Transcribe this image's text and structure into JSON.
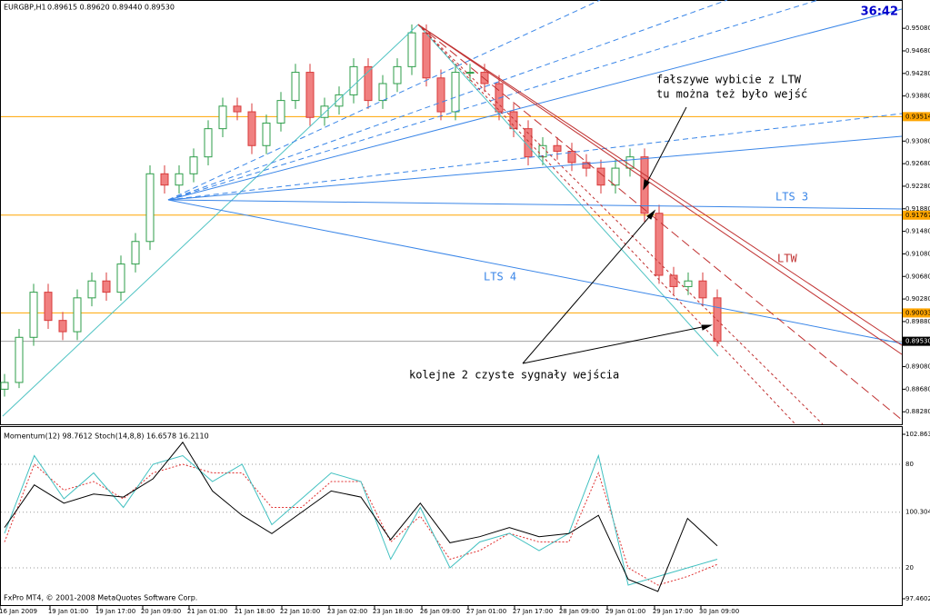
{
  "header": {
    "symbol": "EURGBP,H1",
    "quote": "0.89615 0.89620 0.89440 0.89530"
  },
  "clock": "36:42",
  "price_axis": {
    "ylim": [
      0.8809,
      0.9555
    ],
    "ticks": [
      {
        "value": 0.9508,
        "label": "0.95080"
      },
      {
        "value": 0.9468,
        "label": "0.94680"
      },
      {
        "value": 0.9428,
        "label": "0.94280"
      },
      {
        "value": 0.9388,
        "label": "0.93880"
      },
      {
        "value": 0.9308,
        "label": "0.93080"
      },
      {
        "value": 0.9268,
        "label": "0.92680"
      },
      {
        "value": 0.9228,
        "label": "0.92280"
      },
      {
        "value": 0.9188,
        "label": "0.91880"
      },
      {
        "value": 0.9148,
        "label": "0.91480"
      },
      {
        "value": 0.9108,
        "label": "0.91080"
      },
      {
        "value": 0.9068,
        "label": "0.90680"
      },
      {
        "value": 0.9028,
        "label": "0.90280"
      },
      {
        "value": 0.8988,
        "label": "0.89880"
      },
      {
        "value": 0.8948,
        "label": "0.89480"
      },
      {
        "value": 0.8908,
        "label": "0.89080"
      },
      {
        "value": 0.8868,
        "label": "0.88680"
      },
      {
        "value": 0.8828,
        "label": "0.88280"
      }
    ]
  },
  "price_levels": [
    {
      "value": 0.93514,
      "label": "0.93514",
      "color": "#ffa500"
    },
    {
      "value": 0.91767,
      "label": "0.91767",
      "color": "#ffa500"
    },
    {
      "value": 0.90033,
      "label": "0.90033",
      "color": "#ffa500"
    },
    {
      "value": 0.8953,
      "label": "0.89530",
      "color": "#a0a0a0"
    }
  ],
  "candles": [
    [
      0.8868,
      0.8895,
      0.8855,
      0.888
    ],
    [
      0.888,
      0.8975,
      0.887,
      0.896
    ],
    [
      0.896,
      0.9055,
      0.8945,
      0.904
    ],
    [
      0.904,
      0.9055,
      0.8975,
      0.899
    ],
    [
      0.899,
      0.9005,
      0.8955,
      0.897
    ],
    [
      0.897,
      0.9045,
      0.8955,
      0.903
    ],
    [
      0.903,
      0.9075,
      0.9015,
      0.906
    ],
    [
      0.906,
      0.9075,
      0.9025,
      0.904
    ],
    [
      0.904,
      0.9105,
      0.9025,
      0.909
    ],
    [
      0.909,
      0.9145,
      0.9075,
      0.913
    ],
    [
      0.913,
      0.9265,
      0.9115,
      0.925
    ],
    [
      0.925,
      0.9265,
      0.9215,
      0.923
    ],
    [
      0.923,
      0.9265,
      0.9215,
      0.925
    ],
    [
      0.925,
      0.9295,
      0.9235,
      0.928
    ],
    [
      0.928,
      0.9345,
      0.9265,
      0.933
    ],
    [
      0.933,
      0.9385,
      0.9315,
      0.937
    ],
    [
      0.937,
      0.9385,
      0.9345,
      0.936
    ],
    [
      0.936,
      0.9375,
      0.9285,
      0.93
    ],
    [
      0.93,
      0.9355,
      0.9285,
      0.934
    ],
    [
      0.934,
      0.9395,
      0.9325,
      0.938
    ],
    [
      0.938,
      0.9445,
      0.9365,
      0.943
    ],
    [
      0.943,
      0.9445,
      0.9335,
      0.935
    ],
    [
      0.935,
      0.9385,
      0.9335,
      0.937
    ],
    [
      0.937,
      0.9405,
      0.9355,
      0.939
    ],
    [
      0.939,
      0.9455,
      0.9375,
      0.944
    ],
    [
      0.944,
      0.9455,
      0.9365,
      0.938
    ],
    [
      0.938,
      0.9425,
      0.9365,
      0.941
    ],
    [
      0.941,
      0.9455,
      0.9395,
      0.944
    ],
    [
      0.944,
      0.9515,
      0.9425,
      0.95
    ],
    [
      0.95,
      0.9515,
      0.9405,
      0.942
    ],
    [
      0.942,
      0.9435,
      0.9345,
      0.936
    ],
    [
      0.936,
      0.9445,
      0.9345,
      0.943
    ],
    [
      0.943,
      0.9445,
      0.9415,
      0.943
    ],
    [
      0.943,
      0.9445,
      0.9395,
      0.941
    ],
    [
      0.941,
      0.9425,
      0.9345,
      0.936
    ],
    [
      0.936,
      0.9375,
      0.9315,
      0.933
    ],
    [
      0.933,
      0.9345,
      0.9265,
      0.928
    ],
    [
      0.928,
      0.9315,
      0.9265,
      0.93
    ],
    [
      0.93,
      0.9315,
      0.9275,
      0.929
    ],
    [
      0.929,
      0.9305,
      0.9255,
      0.927
    ],
    [
      0.927,
      0.9285,
      0.9245,
      0.926
    ],
    [
      0.926,
      0.9275,
      0.9215,
      0.923
    ],
    [
      0.923,
      0.9275,
      0.9215,
      0.926
    ],
    [
      0.926,
      0.9295,
      0.9245,
      0.928
    ],
    [
      0.928,
      0.9295,
      0.9165,
      0.918
    ],
    [
      0.918,
      0.9195,
      0.9055,
      0.907
    ],
    [
      0.907,
      0.9085,
      0.9035,
      0.905
    ],
    [
      0.905,
      0.9075,
      0.9035,
      0.906
    ],
    [
      0.906,
      0.9075,
      0.9015,
      0.903
    ],
    [
      0.903,
      0.9045,
      0.8944,
      0.8953
    ]
  ],
  "time_axis": [
    "16 Jan 2009",
    "19 Jan 01:00",
    "19 Jan 17:00",
    "20 Jan 09:00",
    "21 Jan 01:00",
    "21 Jan 18:00",
    "22 Jan 10:00",
    "23 Jan 02:00",
    "23 Jan 18:00",
    "26 Jan 09:00",
    "27 Jan 01:00",
    "27 Jan 17:00",
    "28 Jan 09:00",
    "29 Jan 01:00",
    "29 Jan 17:00",
    "30 Jan 09:00"
  ],
  "annotations": {
    "false_break_1": "fałszywe wybicie z LTW",
    "false_break_2": "tu można też było wejść",
    "lts3": "LTS 3",
    "lts4": "LTS 4",
    "ltw": "LTW",
    "signals": "kolejne 2 czyste sygnały wejścia"
  },
  "indicator": {
    "label": "Momentum(12) 98.7612  Stoch(14,8,8) 16.6578 16.2110",
    "momentum_ylim": [
      97.341,
      103.012
    ],
    "momentum_ticks": [
      102.863,
      100.3046,
      97.4602
    ],
    "stoch_ylim": [
      0,
      100
    ],
    "stoch_ticks": [
      80,
      20
    ],
    "momentum": [
      99.8,
      101.2,
      100.6,
      100.9,
      100.8,
      101.4,
      102.6,
      101.0,
      100.2,
      99.6,
      100.3,
      101.0,
      100.8,
      99.4,
      100.6,
      99.3,
      99.5,
      99.8,
      99.5,
      99.6,
      100.2,
      98.1,
      97.7,
      100.1,
      99.2
    ],
    "stoch_main": [
      40,
      85,
      60,
      75,
      55,
      80,
      85,
      70,
      80,
      45,
      60,
      75,
      70,
      25,
      55,
      20,
      35,
      40,
      30,
      40,
      85,
      10,
      15,
      20,
      25
    ],
    "stoch_signal": [
      35,
      80,
      65,
      70,
      60,
      75,
      80,
      75,
      75,
      55,
      55,
      70,
      70,
      35,
      50,
      25,
      30,
      40,
      35,
      35,
      75,
      20,
      10,
      15,
      22
    ]
  },
  "footer": "FxPro MT4, © 2001-2008 MetaQuotes Software Corp."
}
